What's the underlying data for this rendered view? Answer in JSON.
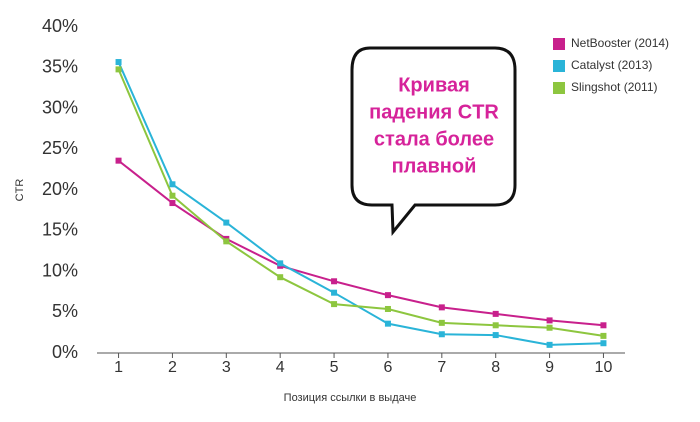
{
  "chart_data": {
    "type": "line",
    "annotation": [
      "Кривая",
      "падения CTR",
      "стала более",
      "плавной"
    ],
    "x_label": "Позиция ссылки в выдаче",
    "y_label": "CTR",
    "x": [
      1,
      2,
      3,
      4,
      5,
      6,
      7,
      8,
      9,
      10
    ],
    "xlim": [
      0.6,
      10.4
    ],
    "xticks": [
      1,
      2,
      3,
      4,
      5,
      6,
      7,
      8,
      9,
      10
    ],
    "ylim": [
      0,
      40
    ],
    "yticks": [
      {
        "value": 0,
        "label": "0%"
      },
      {
        "value": 5,
        "label": "5%"
      },
      {
        "value": 10,
        "label": "10%"
      },
      {
        "value": 15,
        "label": "15%"
      },
      {
        "value": 20,
        "label": "20%"
      },
      {
        "value": 25,
        "label": "25%"
      },
      {
        "value": 30,
        "label": "30%"
      },
      {
        "value": 35,
        "label": "35%"
      },
      {
        "value": 40,
        "label": "40%"
      }
    ],
    "grid": false,
    "legend": "upper right",
    "series": [
      {
        "name": "NetBooster (2014)",
        "color": "#c8208c",
        "values": [
          23.6,
          18.4,
          14.0,
          10.7,
          8.8,
          7.1,
          5.6,
          4.8,
          4.0,
          3.4
        ]
      },
      {
        "name": "Catalyst (2013)",
        "color": "#2ab4d8",
        "values": [
          35.7,
          20.7,
          16.0,
          11.0,
          7.4,
          3.6,
          2.3,
          2.2,
          1.0,
          1.2
        ]
      },
      {
        "name": "Slingshot (2011)",
        "color": "#8dc63f",
        "values": [
          34.8,
          19.3,
          13.7,
          9.3,
          6.0,
          5.4,
          3.7,
          3.4,
          3.1,
          2.1
        ]
      }
    ]
  }
}
